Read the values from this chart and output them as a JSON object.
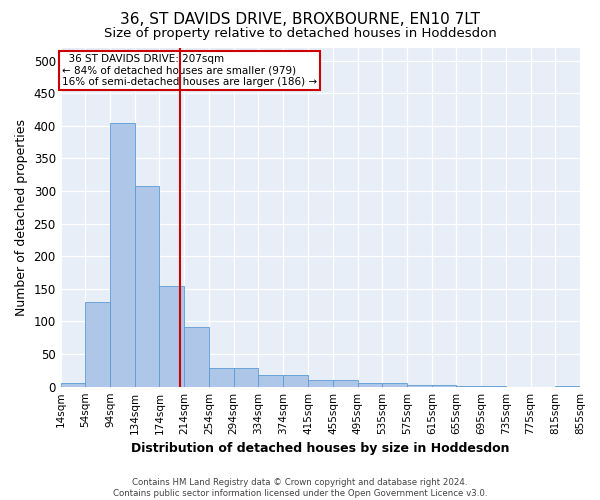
{
  "title": "36, ST DAVIDS DRIVE, BROXBOURNE, EN10 7LT",
  "subtitle": "Size of property relative to detached houses in Hoddesdon",
  "xlabel": "Distribution of detached houses by size in Hoddesdon",
  "ylabel": "Number of detached properties",
  "footer_line1": "Contains HM Land Registry data © Crown copyright and database right 2024.",
  "footer_line2": "Contains public sector information licensed under the Open Government Licence v3.0.",
  "annotation_line1": "36 ST DAVIDS DRIVE: 207sqm",
  "annotation_line2": "← 84% of detached houses are smaller (979)",
  "annotation_line3": "16% of semi-detached houses are larger (186) →",
  "bar_color": "#aec6e8",
  "bar_edge_color": "#5b9bd5",
  "vline_color": "#cc0000",
  "vline_x": 207,
  "bins_left": [
    14,
    54,
    94,
    134,
    174,
    214,
    254,
    294,
    334,
    374,
    415,
    455,
    495,
    535,
    575,
    615,
    655,
    695,
    735,
    775,
    815
  ],
  "bin_width": 40,
  "counts": [
    5,
    130,
    405,
    308,
    155,
    92,
    28,
    28,
    18,
    18,
    10,
    10,
    5,
    5,
    2,
    2,
    1,
    1,
    0,
    0,
    1
  ],
  "ylim": [
    0,
    520
  ],
  "yticks": [
    0,
    50,
    100,
    150,
    200,
    250,
    300,
    350,
    400,
    450,
    500
  ],
  "xlim_left": 14,
  "xlim_right": 855,
  "background_color": "#e8eef7",
  "title_fontsize": 11,
  "subtitle_fontsize": 9.5,
  "tick_label_fontsize": 7.5,
  "ylabel_fontsize": 9,
  "xlabel_fontsize": 9,
  "annotation_fontsize": 7.5,
  "footer_fontsize": 6.2
}
